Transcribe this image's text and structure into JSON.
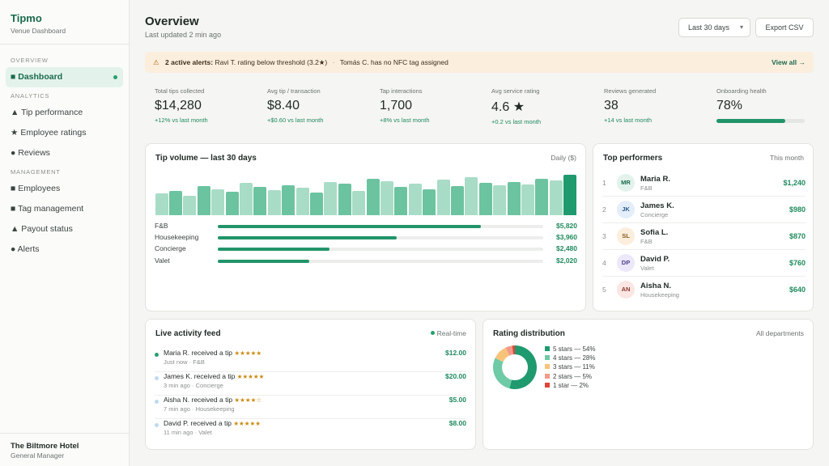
{
  "brand": {
    "name": "Tipmo",
    "subtitle": "Venue Dashboard"
  },
  "sidebar": {
    "sections": [
      {
        "label": "OVERVIEW",
        "items": [
          {
            "label": "■ Dashboard",
            "active": true
          }
        ]
      },
      {
        "label": "ANALYTICS",
        "items": [
          {
            "label": "▲ Tip performance"
          },
          {
            "label": "★ Employee ratings"
          },
          {
            "label": "● Reviews"
          }
        ]
      },
      {
        "label": "MANAGEMENT",
        "items": [
          {
            "label": "■ Employees"
          },
          {
            "label": "■ Tag management"
          },
          {
            "label": "▲ Payout status"
          },
          {
            "label": "● Alerts"
          }
        ]
      }
    ],
    "footer": {
      "venue": "The Biltmore Hotel",
      "role": "General Manager"
    }
  },
  "header": {
    "title": "Overview",
    "updated": "Last updated 2 min ago",
    "range_selected": "Last 30 days",
    "export_label": "Export CSV"
  },
  "alert": {
    "lead": "2 active alerts:",
    "item1": "Ravi T. rating below threshold (3.2★)",
    "separator": "·",
    "item2": "Tomás C. has no NFC tag assigned",
    "action": "View all →"
  },
  "kpis": [
    {
      "label": "Total tips collected",
      "value": "$14,280",
      "delta": "+12% vs last month"
    },
    {
      "label": "Avg tip / transaction",
      "value": "$8.40",
      "delta": "+$0.60 vs last month"
    },
    {
      "label": "Tap interactions",
      "value": "1,700",
      "delta": "+8% vs last month"
    },
    {
      "label": "Avg service rating",
      "value": "4.6 ★",
      "delta": "+0.2 vs last month"
    },
    {
      "label": "Reviews generated",
      "value": "38",
      "delta": "+14 vs last month"
    },
    {
      "label": "Onboarding health",
      "value": "78%",
      "progress": 0.78
    }
  ],
  "tip_volume": {
    "title": "Tip volume — last 30 days",
    "meta": "Daily ($)",
    "daily_relative": [
      0.55,
      0.6,
      0.48,
      0.72,
      0.64,
      0.58,
      0.8,
      0.7,
      0.62,
      0.74,
      0.68,
      0.56,
      0.82,
      0.78,
      0.6,
      0.9,
      0.85,
      0.7,
      0.78,
      0.65,
      0.88,
      0.72,
      0.95,
      0.8,
      0.74,
      0.82,
      0.76,
      0.9,
      0.86,
      1.0
    ],
    "departments": [
      {
        "name": "F&B",
        "amount": "$5,820",
        "value": 5820
      },
      {
        "name": "Housekeeping",
        "amount": "$3,960",
        "value": 3960
      },
      {
        "name": "Concierge",
        "amount": "$2,480",
        "value": 2480
      },
      {
        "name": "Valet",
        "amount": "$2,020",
        "value": 2020
      }
    ]
  },
  "top_performers": {
    "title": "Top performers",
    "meta": "This month",
    "rows": [
      {
        "rank": "1",
        "initials": "MR",
        "name": "Maria R.",
        "dept": "F&B",
        "amount": "$1,240",
        "bg": "#e3f3ec",
        "fg": "#1a6a4c"
      },
      {
        "rank": "2",
        "initials": "JK",
        "name": "James K.",
        "dept": "Concierge",
        "amount": "$980",
        "bg": "#e4eefa",
        "fg": "#2b5a8c"
      },
      {
        "rank": "3",
        "initials": "SL",
        "name": "Sofia L.",
        "dept": "F&B",
        "amount": "$870",
        "bg": "#fbeedd",
        "fg": "#8a5a1c"
      },
      {
        "rank": "4",
        "initials": "DP",
        "name": "David P.",
        "dept": "Valet",
        "amount": "$760",
        "bg": "#ece8fa",
        "fg": "#4b3f8c"
      },
      {
        "rank": "5",
        "initials": "AN",
        "name": "Aisha N.",
        "dept": "Housekeeping",
        "amount": "$640",
        "bg": "#fbe6e3",
        "fg": "#8c3a2b"
      }
    ]
  },
  "activity_feed": {
    "title": "Live activity feed",
    "meta": "Real-time",
    "items": [
      {
        "text": "Maria R. received a tip",
        "stars": "★★★★★",
        "sub": "Just now · F&B",
        "amount": "$12.00",
        "dot": "#27a06f"
      },
      {
        "text": "James K. received a tip",
        "stars": "★★★★★",
        "sub": "3 min ago · Concierge",
        "amount": "$20.00",
        "dot": "#bfd9f2"
      },
      {
        "text": "Aisha N. received a tip",
        "stars": "★★★★☆",
        "sub": "7 min ago · Housekeeping",
        "amount": "$5.00",
        "dot": "#bfd9f2"
      },
      {
        "text": "David P. received a tip",
        "stars": "★★★★★",
        "sub": "11 min ago · Valet",
        "amount": "$8.00",
        "dot": "#bfd9f2"
      }
    ]
  },
  "rating_distribution": {
    "title": "Rating distribution",
    "meta": "All departments",
    "slices": [
      {
        "label": "5 stars — 54%",
        "value": 54,
        "color": "#1f9a6e"
      },
      {
        "label": "4 stars — 28%",
        "value": 28,
        "color": "#6fcaa6"
      },
      {
        "label": "3 stars — 11%",
        "value": 11,
        "color": "#f7c37a"
      },
      {
        "label": "2 stars — 5%",
        "value": 5,
        "color": "#f29a8a"
      },
      {
        "label": "1 star — 2%",
        "value": 2,
        "color": "#e0463a"
      }
    ]
  },
  "colors": {
    "accent": "#1f9a6e",
    "accent_dark": "#1a6a4c",
    "alert_bg": "#fbeedd"
  }
}
